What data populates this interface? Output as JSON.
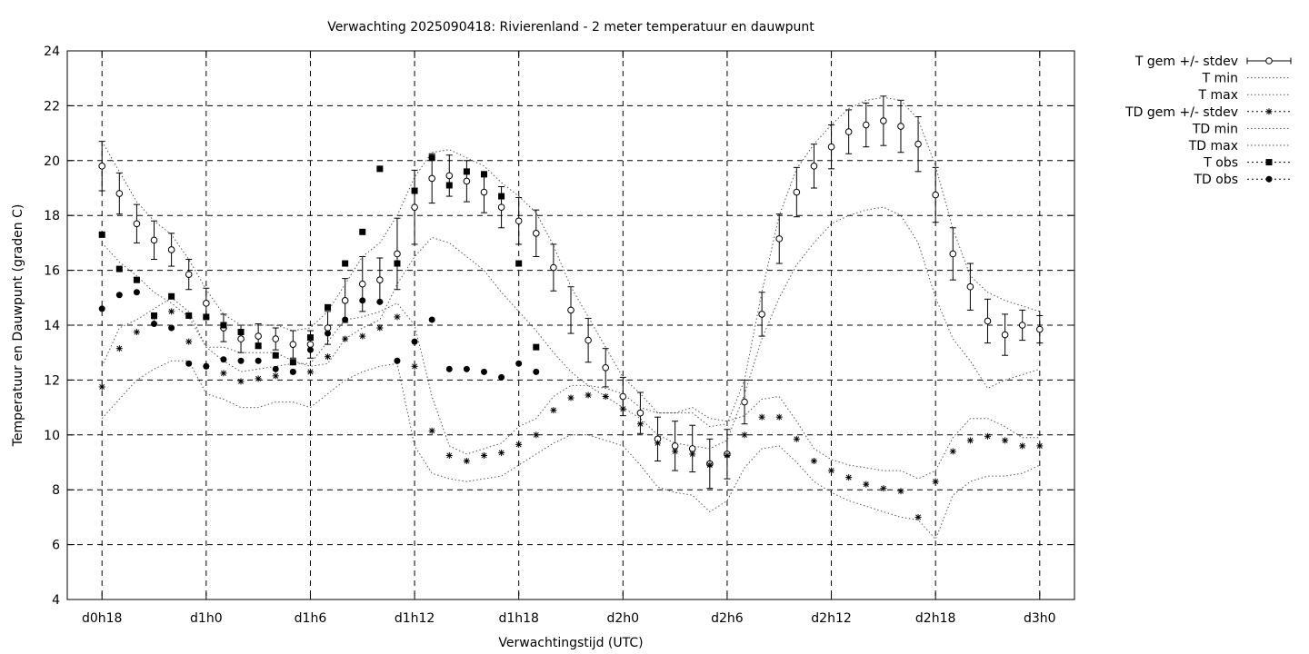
{
  "chart_data": {
    "type": "scatter",
    "title": "Verwachting 2025090418: Rivierenland - 2 meter temperatuur en dauwpunt",
    "xlabel": "Verwachtingstijd (UTC)",
    "ylabel": "Temperatuur en Dauwpunt (graden C)",
    "ylim": [
      4,
      24
    ],
    "xlim": [
      -2,
      56
    ],
    "y_ticks": [
      4,
      6,
      8,
      10,
      12,
      14,
      16,
      18,
      20,
      22,
      24
    ],
    "x_ticks": [
      {
        "x": 0,
        "label": "d0h18"
      },
      {
        "x": 6,
        "label": "d1h0"
      },
      {
        "x": 12,
        "label": "d1h6"
      },
      {
        "x": 18,
        "label": "d1h12"
      },
      {
        "x": 24,
        "label": "d1h18"
      },
      {
        "x": 30,
        "label": "d2h0"
      },
      {
        "x": 36,
        "label": "d2h6"
      },
      {
        "x": 42,
        "label": "d2h12"
      },
      {
        "x": 48,
        "label": "d2h18"
      },
      {
        "x": 54,
        "label": "d3h0"
      }
    ],
    "grid": true,
    "legend_position": "top-right, outside plot",
    "series": [
      {
        "name": "T gem +/- stdev",
        "style": "errorbar-open-circle",
        "x": [
          0,
          1,
          2,
          3,
          4,
          5,
          6,
          7,
          8,
          9,
          10,
          11,
          12,
          13,
          14,
          15,
          16,
          17,
          18,
          19,
          20,
          21,
          22,
          23,
          24,
          25,
          26,
          27,
          28,
          29,
          30,
          31,
          32,
          33,
          34,
          35,
          36,
          37,
          38,
          39,
          40,
          41,
          42,
          43,
          44,
          45,
          46,
          47,
          48,
          49,
          50,
          51,
          52,
          53,
          54
        ],
        "y": [
          19.8,
          18.8,
          17.7,
          17.1,
          16.75,
          15.85,
          14.8,
          13.9,
          13.5,
          13.6,
          13.5,
          13.3,
          13.3,
          13.9,
          14.9,
          15.5,
          15.65,
          16.6,
          18.3,
          19.35,
          19.45,
          19.25,
          18.85,
          18.3,
          17.8,
          17.35,
          16.1,
          14.55,
          13.45,
          12.45,
          11.4,
          10.8,
          9.85,
          9.6,
          9.5,
          8.95,
          9.3,
          11.2,
          14.4,
          17.15,
          18.85,
          19.8,
          20.5,
          21.05,
          21.3,
          21.45,
          21.25,
          20.6,
          18.75,
          16.6,
          15.4,
          14.15,
          13.65,
          14.0,
          13.85
        ],
        "err": [
          0.9,
          0.75,
          0.7,
          0.7,
          0.6,
          0.55,
          0.55,
          0.5,
          0.5,
          0.45,
          0.4,
          0.5,
          0.5,
          0.6,
          0.8,
          1.0,
          0.8,
          1.3,
          1.35,
          0.9,
          0.75,
          0.75,
          0.75,
          0.75,
          0.85,
          0.85,
          0.85,
          0.85,
          0.8,
          0.7,
          0.7,
          0.75,
          0.8,
          0.9,
          0.85,
          0.9,
          0.9,
          0.8,
          0.8,
          0.9,
          0.9,
          0.8,
          0.8,
          0.8,
          0.8,
          0.9,
          0.95,
          1.0,
          1.0,
          0.95,
          0.85,
          0.8,
          0.75,
          0.55,
          0.5
        ]
      },
      {
        "name": "T min",
        "style": "dotted-line",
        "x": [
          0,
          1,
          2,
          3,
          4,
          5,
          6,
          7,
          8,
          9,
          10,
          11,
          12,
          13,
          14,
          15,
          16,
          17,
          18,
          19,
          20,
          21,
          22,
          23,
          24,
          25,
          26,
          27,
          28,
          29,
          30,
          31,
          32,
          33,
          34,
          35,
          36,
          37,
          38,
          39,
          40,
          41,
          42,
          43,
          44,
          45,
          46,
          47,
          48,
          49,
          50,
          51,
          52,
          53,
          54
        ],
        "y": [
          17.0,
          16.3,
          15.8,
          15.2,
          14.8,
          14.3,
          13.2,
          13.2,
          13.0,
          13.0,
          13.0,
          12.7,
          12.5,
          12.6,
          13.5,
          13.9,
          14.2,
          15.5,
          16.5,
          17.2,
          17.0,
          16.5,
          16.0,
          15.2,
          14.5,
          13.8,
          13.0,
          12.3,
          11.8,
          11.4,
          11.0,
          10.6,
          10.0,
          9.7,
          9.6,
          9.5,
          9.8,
          11.5,
          13.5,
          15.0,
          16.2,
          17.0,
          17.7,
          18.0,
          18.2,
          18.3,
          18.0,
          17.0,
          15.0,
          13.5,
          12.7,
          11.7,
          12.0,
          12.2,
          12.4
        ]
      },
      {
        "name": "T max",
        "style": "dotted-line",
        "x": [
          0,
          1,
          2,
          3,
          4,
          5,
          6,
          7,
          8,
          9,
          10,
          11,
          12,
          13,
          14,
          15,
          16,
          17,
          18,
          19,
          20,
          21,
          22,
          23,
          24,
          25,
          26,
          27,
          28,
          29,
          30,
          31,
          32,
          33,
          34,
          35,
          36,
          37,
          38,
          39,
          40,
          41,
          42,
          43,
          44,
          45,
          46,
          47,
          48,
          49,
          50,
          51,
          52,
          53,
          54
        ],
        "y": [
          20.7,
          19.6,
          18.5,
          17.8,
          17.3,
          16.4,
          15.3,
          14.4,
          14.0,
          14.0,
          14.0,
          13.8,
          13.9,
          14.5,
          15.5,
          16.5,
          17.0,
          18.0,
          19.4,
          20.3,
          20.4,
          20.1,
          19.8,
          19.2,
          18.7,
          18.1,
          16.9,
          15.4,
          14.3,
          13.2,
          12.1,
          11.5,
          10.8,
          10.8,
          10.8,
          10.3,
          10.4,
          12.0,
          15.2,
          18.0,
          19.7,
          20.6,
          21.3,
          21.9,
          22.2,
          22.3,
          22.2,
          21.5,
          19.8,
          17.5,
          15.8,
          15.2,
          14.9,
          14.7,
          14.5
        ]
      },
      {
        "name": "TD gem +/- stdev",
        "style": "errorbar-star",
        "x": [
          0,
          1,
          2,
          3,
          4,
          5,
          6,
          7,
          8,
          9,
          10,
          11,
          12,
          13,
          14,
          15,
          16,
          17,
          18,
          19,
          20,
          21,
          22,
          23,
          24,
          25,
          26,
          27,
          28,
          29,
          30,
          31,
          32,
          33,
          34,
          35,
          36,
          37,
          38,
          39,
          40,
          41,
          42,
          43,
          44,
          45,
          46,
          47,
          48,
          49,
          50,
          51,
          52,
          53,
          54
        ],
        "y": [
          11.75,
          13.15,
          13.75,
          14.3,
          14.5,
          13.4,
          12.5,
          12.25,
          11.95,
          12.05,
          12.15,
          12.3,
          12.3,
          12.85,
          13.5,
          13.6,
          13.9,
          14.3,
          12.5,
          10.15,
          9.25,
          9.05,
          9.25,
          9.35,
          9.65,
          10.0,
          10.9,
          11.35,
          11.45,
          11.4,
          10.95,
          10.4,
          9.7,
          9.4,
          9.3,
          8.9,
          9.25,
          10.0,
          10.65,
          10.65,
          9.85,
          9.05,
          8.7,
          8.45,
          8.2,
          8.05,
          7.95,
          7.0,
          8.3,
          9.4,
          9.8,
          9.95,
          9.8,
          9.6,
          9.6
        ]
      },
      {
        "name": "TD min",
        "style": "dotted-line",
        "x": [
          0,
          1,
          2,
          3,
          4,
          5,
          6,
          7,
          8,
          9,
          10,
          11,
          12,
          13,
          14,
          15,
          16,
          17,
          18,
          19,
          20,
          21,
          22,
          23,
          24,
          25,
          26,
          27,
          28,
          29,
          30,
          31,
          32,
          33,
          34,
          35,
          36,
          37,
          38,
          39,
          40,
          41,
          42,
          43,
          44,
          45,
          46,
          47,
          48,
          49,
          50,
          51,
          52,
          53,
          54
        ],
        "y": [
          10.6,
          11.3,
          12.0,
          12.4,
          12.7,
          12.7,
          11.5,
          11.3,
          11.0,
          11.0,
          11.2,
          11.2,
          11.0,
          11.5,
          12.0,
          12.3,
          12.5,
          12.6,
          9.6,
          8.6,
          8.4,
          8.3,
          8.4,
          8.5,
          8.9,
          9.3,
          9.7,
          10.0,
          10.0,
          9.8,
          9.6,
          8.9,
          8.1,
          7.9,
          7.8,
          7.2,
          7.6,
          8.8,
          9.5,
          9.6,
          9.0,
          8.3,
          7.9,
          7.6,
          7.4,
          7.2,
          7.0,
          6.9,
          6.2,
          7.8,
          8.3,
          8.5,
          8.5,
          8.6,
          8.9
        ]
      },
      {
        "name": "TD max",
        "style": "dotted-line",
        "x": [
          0,
          1,
          2,
          3,
          4,
          5,
          6,
          7,
          8,
          9,
          10,
          11,
          12,
          13,
          14,
          15,
          16,
          17,
          18,
          19,
          20,
          21,
          22,
          23,
          24,
          25,
          26,
          27,
          28,
          29,
          30,
          31,
          32,
          33,
          34,
          35,
          36,
          37,
          38,
          39,
          40,
          41,
          42,
          43,
          44,
          45,
          46,
          47,
          48,
          49,
          50,
          51,
          52,
          53,
          54
        ],
        "y": [
          12.5,
          13.9,
          14.2,
          14.6,
          15.0,
          14.5,
          13.2,
          12.7,
          12.3,
          12.4,
          12.5,
          12.6,
          12.6,
          13.4,
          14.2,
          14.3,
          14.5,
          14.8,
          14.0,
          11.4,
          9.6,
          9.3,
          9.5,
          9.7,
          10.3,
          10.6,
          11.4,
          11.8,
          11.8,
          11.7,
          11.5,
          11.0,
          10.8,
          10.8,
          11.0,
          10.6,
          10.5,
          10.7,
          11.3,
          11.4,
          10.5,
          9.5,
          9.1,
          8.9,
          8.8,
          8.7,
          8.7,
          8.4,
          8.7,
          9.9,
          10.6,
          10.6,
          10.3,
          9.9,
          9.9
        ]
      },
      {
        "name": "T obs",
        "style": "filled-square",
        "x": [
          0,
          1,
          2,
          3,
          4,
          5,
          6,
          7,
          8,
          9,
          10,
          11,
          12,
          13,
          14,
          15,
          16,
          17,
          18,
          19,
          20,
          21,
          22,
          23,
          24,
          25
        ],
        "y": [
          17.3,
          16.05,
          15.65,
          14.35,
          15.05,
          14.35,
          14.3,
          14.0,
          13.75,
          13.25,
          12.9,
          12.65,
          13.55,
          14.65,
          16.25,
          17.4,
          19.7,
          16.25,
          18.9,
          20.1,
          19.1,
          19.6,
          19.5,
          18.7,
          16.25,
          13.2
        ]
      },
      {
        "name": "TD obs",
        "style": "filled-circle",
        "x": [
          0,
          1,
          2,
          3,
          4,
          5,
          6,
          7,
          8,
          9,
          10,
          11,
          12,
          13,
          14,
          15,
          16,
          17,
          18,
          19,
          20,
          21,
          22,
          23,
          24,
          25
        ],
        "y": [
          14.6,
          15.1,
          15.2,
          14.05,
          13.9,
          12.6,
          12.5,
          12.75,
          12.7,
          12.7,
          12.4,
          12.3,
          13.1,
          13.7,
          14.2,
          14.9,
          14.85,
          12.7,
          13.4,
          14.2,
          12.4,
          12.4,
          12.3,
          12.1,
          12.6,
          12.3
        ]
      }
    ]
  }
}
